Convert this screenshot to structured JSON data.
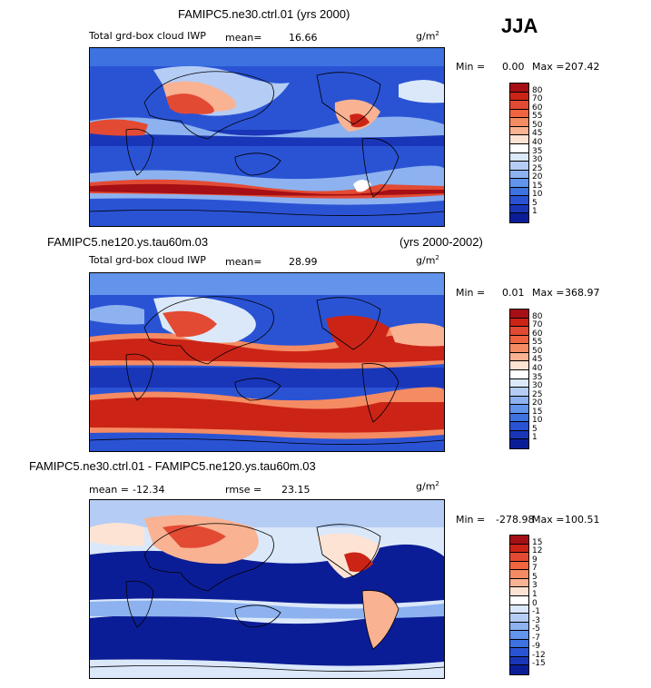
{
  "season": "JJA",
  "panels": [
    {
      "title": "FAMIPC5.ne30.ctrl.01 (yrs 2000)",
      "subtitle": "Total grd-box cloud IWP",
      "mean_label": "mean=",
      "mean_value": "16.66",
      "units": "g/m",
      "units_exp": "2",
      "min_label": "Min =",
      "min_value": "0.00",
      "max_label": "Max =",
      "max_value": "207.42",
      "colorbar_ticks": [
        "80",
        "70",
        "60",
        "55",
        "50",
        "45",
        "40",
        "35",
        "30",
        "25",
        "20",
        "15",
        "10",
        "5",
        "1"
      ],
      "colorbar_colors": [
        "#a50f15",
        "#cb2417",
        "#e34a33",
        "#f0653f",
        "#f58b62",
        "#f9b292",
        "#fde3d4",
        "#ffffff",
        "#dbe8fa",
        "#b5cdf5",
        "#8db2ef",
        "#6194ea",
        "#3d72e0",
        "#2a53d4",
        "#1a36b8",
        "#0b1d96"
      ]
    },
    {
      "title_left": "FAMIPC5.ne120.ys.tau60m.03",
      "title_right": "(yrs 2000-2002)",
      "subtitle": "Total grd-box cloud IWP",
      "mean_label": "mean=",
      "mean_value": "28.99",
      "units": "g/m",
      "units_exp": "2",
      "min_label": "Min =",
      "min_value": "0.01",
      "max_label": "Max =",
      "max_value": "368.97",
      "colorbar_ticks": [
        "80",
        "70",
        "60",
        "55",
        "50",
        "45",
        "40",
        "35",
        "30",
        "25",
        "20",
        "15",
        "10",
        "5",
        "1"
      ],
      "colorbar_colors": [
        "#a50f15",
        "#cb2417",
        "#e34a33",
        "#f0653f",
        "#f58b62",
        "#f9b292",
        "#fde3d4",
        "#ffffff",
        "#dbe8fa",
        "#b5cdf5",
        "#8db2ef",
        "#6194ea",
        "#3d72e0",
        "#2a53d4",
        "#1a36b8",
        "#0b1d96"
      ]
    },
    {
      "title": "FAMIPC5.ne30.ctrl.01 - FAMIPC5.ne120.ys.tau60m.03",
      "mean_label": "mean =",
      "mean_value": "-12.34",
      "rmse_label": "rmse =",
      "rmse_value": "23.15",
      "units": "g/m",
      "units_exp": "2",
      "min_label": "Min =",
      "min_value": "-278.98",
      "max_label": "Max =",
      "max_value": "100.51",
      "colorbar_ticks": [
        "15",
        "12",
        "9",
        "7",
        "5",
        "3",
        "1",
        "0",
        "-1",
        "-3",
        "-5",
        "-7",
        "-9",
        "-12",
        "-15"
      ],
      "colorbar_colors": [
        "#a50f15",
        "#cb2417",
        "#e34a33",
        "#f0653f",
        "#f58b62",
        "#f9b292",
        "#fde3d4",
        "#ffffff",
        "#dbe8fa",
        "#b5cdf5",
        "#8db2ef",
        "#6194ea",
        "#3d72e0",
        "#2a53d4",
        "#1a36b8",
        "#0b1d96"
      ]
    }
  ]
}
